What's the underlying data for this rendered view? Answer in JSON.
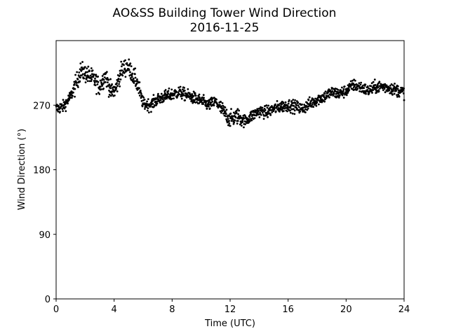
{
  "chart_data": {
    "type": "scatter",
    "title": "AO&SS Building Tower Wind Direction",
    "subtitle": "2016-11-25",
    "xlabel": "Time (UTC)",
    "ylabel": "Wind Direction (°)",
    "xlim": [
      0,
      24
    ],
    "ylim": [
      0,
      360
    ],
    "xticks": [
      0,
      4,
      8,
      12,
      16,
      20,
      24
    ],
    "yticks": [
      0,
      90,
      180,
      270
    ],
    "grid": false,
    "legend": "none",
    "marker_color": "#000000",
    "trend": {
      "x": [
        0,
        0.5,
        1.0,
        1.3,
        1.7,
        2.2,
        2.6,
        3.0,
        3.4,
        3.8,
        4.1,
        4.5,
        4.9,
        5.2,
        5.6,
        6.0,
        6.5,
        7.0,
        7.5,
        8.0,
        8.5,
        9.0,
        9.5,
        10.0,
        10.5,
        11.0,
        11.5,
        12.0,
        12.5,
        13.0,
        13.5,
        14.0,
        14.5,
        15.0,
        15.5,
        16.0,
        16.5,
        17.0,
        17.5,
        18.0,
        18.5,
        19.0,
        19.5,
        20.0,
        20.5,
        21.0,
        21.5,
        22.0,
        22.5,
        23.0,
        23.5,
        24.0
      ],
      "y": [
        265,
        268,
        282,
        296,
        318,
        312,
        306,
        296,
        312,
        288,
        292,
        318,
        325,
        316,
        300,
        272,
        270,
        278,
        282,
        285,
        288,
        284,
        280,
        276,
        270,
        275,
        262,
        250,
        255,
        248,
        255,
        262,
        260,
        265,
        268,
        270,
        268,
        265,
        272,
        278,
        282,
        288,
        286,
        290,
        298,
        295,
        290,
        295,
        296,
        294,
        291,
        288
      ],
      "spread": 6
    },
    "count": 1440,
    "marker_size": 2.2
  }
}
